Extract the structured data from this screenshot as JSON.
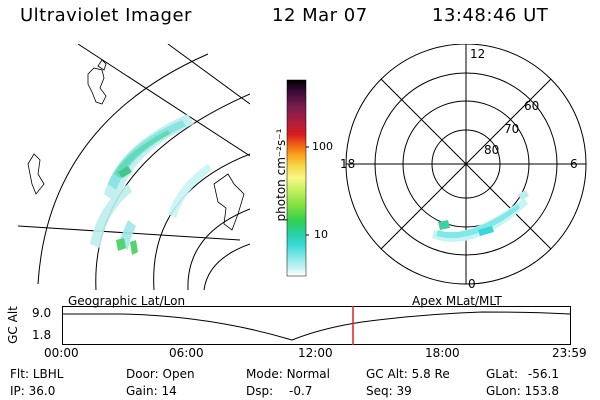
{
  "header": {
    "title": "Ultraviolet Imager",
    "date": "12 Mar 07",
    "time": "13:48:46 UT"
  },
  "colorbar": {
    "label": "photon cm⁻²s⁻¹",
    "tick_labels": [
      "100",
      "10"
    ],
    "colors": [
      "#000000",
      "#3b0a3a",
      "#7a1e4f",
      "#b21e3c",
      "#d81e1e",
      "#f06018",
      "#f8a018",
      "#f7d84a",
      "#f8f888",
      "#c8f060",
      "#80e040",
      "#30d050",
      "#28d0a0",
      "#38d8d8",
      "#80e8e8",
      "#c8f4f4",
      "#ffffff"
    ]
  },
  "geo_map": {
    "label": "Geographic Lat/Lon"
  },
  "polar_plot": {
    "label": "Apex MLat/MLT",
    "lat_labels": [
      "80",
      "70",
      "60"
    ],
    "mlt_labels": [
      "12",
      "18",
      "6",
      "0"
    ]
  },
  "timeline": {
    "axis_label": "GC Alt",
    "y_ticks": [
      "9.0",
      "1.8"
    ],
    "time_ticks": [
      "00:00",
      "06:00",
      "12:00",
      "18:00",
      "23:59"
    ],
    "current_marker_color": "#e02020"
  },
  "status": {
    "flt_label": "Flt:",
    "flt_value": "LBHL",
    "ip_label": "IP:",
    "ip_value": "36.0",
    "door_label": "Door:",
    "door_value": "Open",
    "gain_label": "Gain:",
    "gain_value": "14",
    "mode_label": "Mode:",
    "mode_value": "Normal",
    "dsp_label": "Dsp:",
    "dsp_value": "-0.7",
    "gcalt_label": "GC Alt:",
    "gcalt_value": "5.8 Re",
    "seq_label": "Seq:",
    "seq_value": "39",
    "glat_label": "GLat:",
    "glat_value": "-56.1",
    "glon_label": "GLon:",
    "glon_value": "153.8"
  }
}
